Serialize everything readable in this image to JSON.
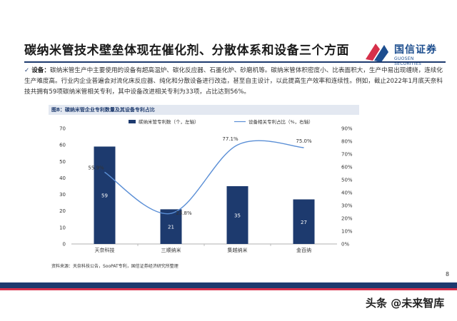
{
  "slide_title": "碳纳米管技术壁垒体现在催化剂、分散体系和设备三个方面",
  "logo": {
    "brand": "国信证券",
    "sub": "GUOSEN SECURITIES"
  },
  "bullet": {
    "check": "✓",
    "label": "设备：",
    "text": "碳纳米管生产中主要使用的设备有超高温炉、碳化反应器、石墨化炉、砂磨机等。碳纳米管体积密度小、比表面积大，生产中易出现缠绕，连续化生产难度高。行业内企业普遍会对流化床反应器、纯化和分散设备进行改造，甚至自主设计，以此提高生产效率和连续性。例如，截止2022年1月底天奈科技共拥有59项碳纳米管相关专利，其中设备改进相关专利为33项，占比达到56%。"
  },
  "figure_caption": "图8：碳纳米管企业专利数量及其设备专利占比",
  "chart_data": {
    "type": "bar",
    "categories": [
      "天奈科技",
      "三顺纳米",
      "集越纳米",
      "金百纳"
    ],
    "series": [
      {
        "name": "碳纳米管专利数（个，左轴）",
        "type": "bar",
        "axis": "left",
        "values": [
          59,
          21,
          35,
          27
        ],
        "color": "#1d3a6e"
      },
      {
        "name": "设备相关专利占比（%，右轴）",
        "type": "line",
        "axis": "right",
        "values": [
          55.9,
          23.8,
          77.1,
          75.0
        ],
        "color": "#5b8fd6"
      }
    ],
    "bar_value_labels": [
      "59",
      "21",
      "35",
      "27"
    ],
    "line_value_labels": [
      "55.9%",
      "23.8%",
      "77.1%",
      "75.0%"
    ],
    "ylim_left": [
      0,
      70
    ],
    "yticks_left": [
      "0",
      "10",
      "20",
      "30",
      "40",
      "50",
      "60",
      "70"
    ],
    "ylim_right": [
      0,
      90
    ],
    "yticks_right": [
      "0%",
      "10%",
      "20%",
      "30%",
      "40%",
      "50%",
      "60%",
      "70%",
      "80%",
      "90%"
    ],
    "legend_position": "top",
    "grid": false
  },
  "source_note": "资料来源：天奈科技公告，SooPAT专利，国信证券经济研究所整理",
  "page_number": "8",
  "watermark": "头条 @未来智库",
  "colors": {
    "navy": "#1d3a6e",
    "line_blue": "#5b8fd6",
    "accent_red": "#d6304a"
  }
}
